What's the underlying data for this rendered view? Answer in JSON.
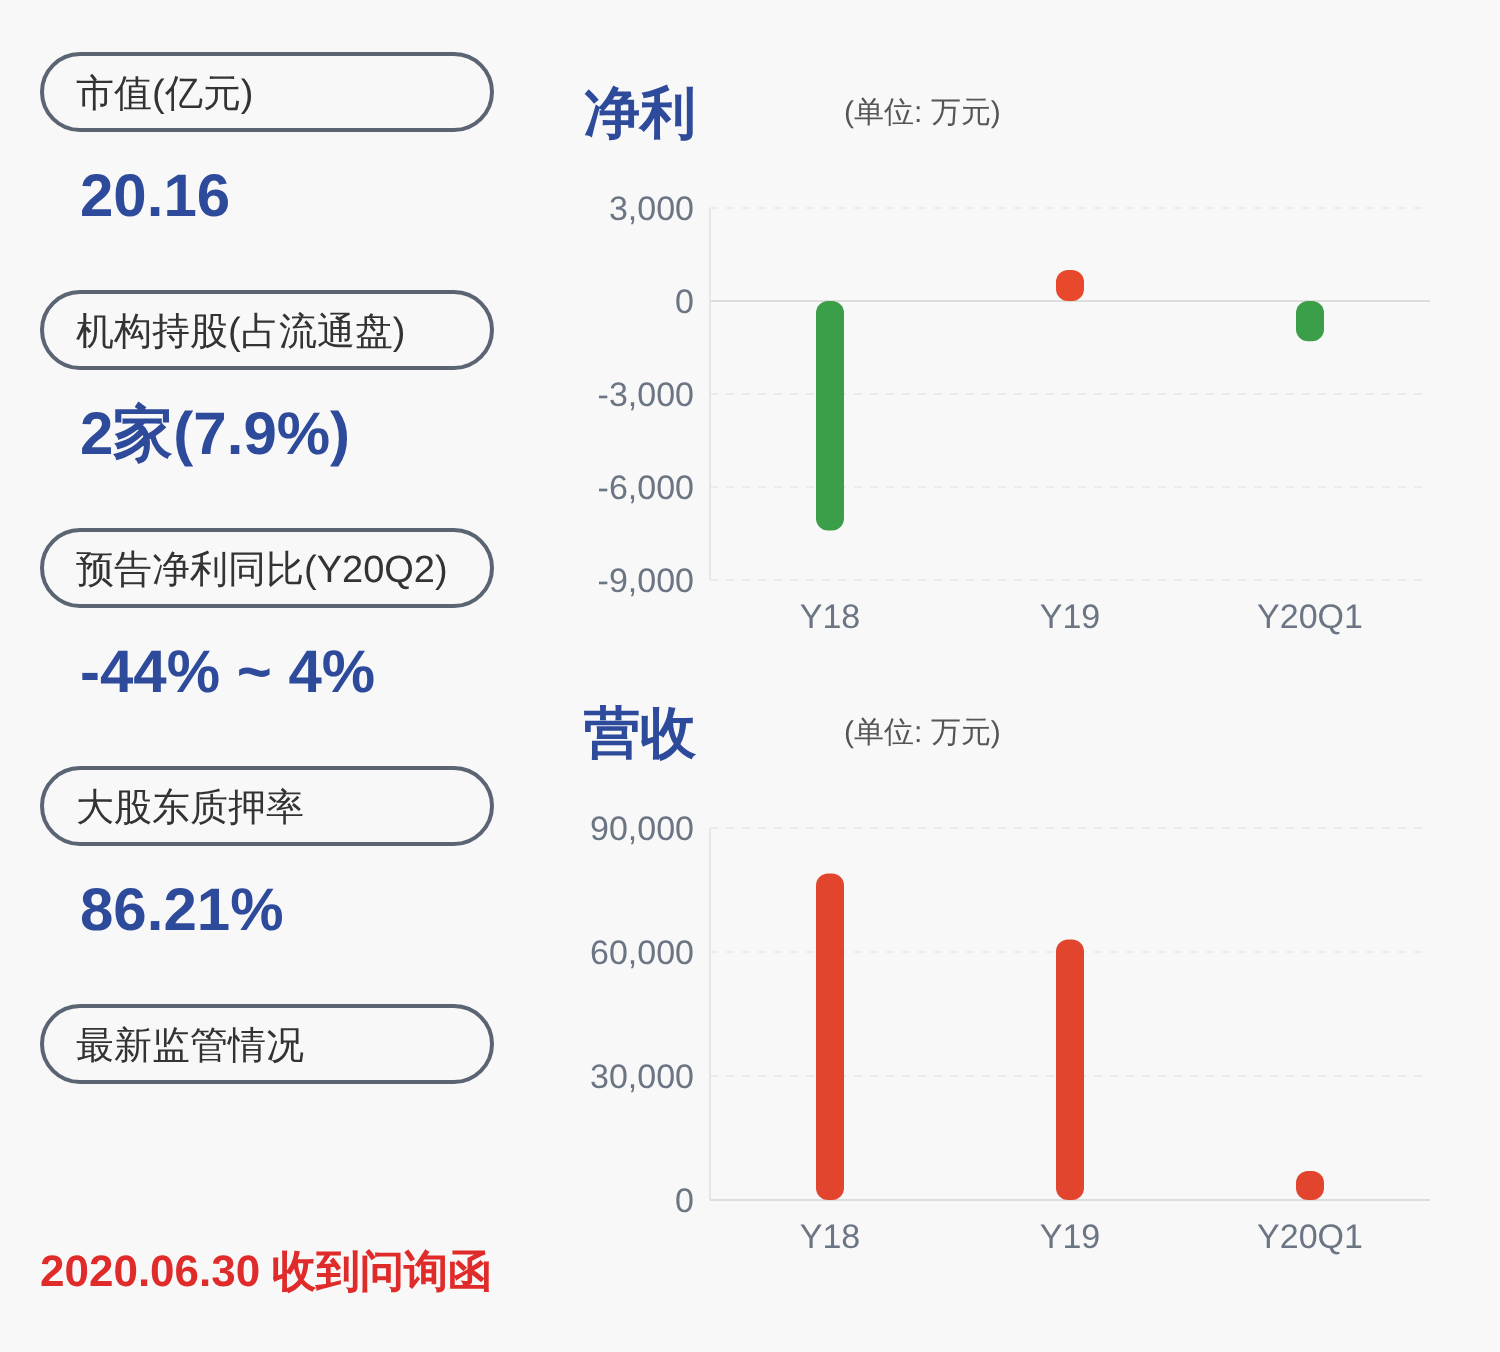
{
  "chart_data": [
    {
      "type": "other",
      "annotations": [
        "市值(亿元)",
        "20.16",
        "机构持股(占流通盘)",
        "2家(7.9%)",
        "预告净利同比(Y20Q2)",
        "-44% ~ 4%",
        "大股东质押率",
        "86.21%",
        "最新监管情况",
        "2020.06.30 收到问询函"
      ]
    },
    {
      "type": "bar",
      "title": "净利",
      "subtitle": "(单位: 万元)",
      "categories": [
        "Y18",
        "Y19",
        "Y20Q1"
      ],
      "values": [
        -7400,
        1000,
        -1300
      ],
      "colors": [
        "#3b9e48",
        "#e8482c",
        "#3b9e48"
      ],
      "ylim": [
        -9000,
        3000
      ],
      "yticks": [
        {
          "value": -9000,
          "label": "-9,000"
        },
        {
          "value": -6000,
          "label": "-6,000"
        },
        {
          "value": -3000,
          "label": "-3,000"
        },
        0,
        {
          "value": 3000,
          "label": "3,000"
        }
      ],
      "grid": "y"
    },
    {
      "type": "bar",
      "title": "营收",
      "subtitle": "(单位: 万元)",
      "categories": [
        "Y18",
        "Y19",
        "Y20Q1"
      ],
      "values": [
        79000,
        63000,
        7000
      ],
      "color": "#e2452d",
      "ylim": [
        0,
        90000
      ],
      "yticks": [
        0,
        {
          "value": 30000,
          "label": "30,000"
        },
        {
          "value": 60000,
          "label": "60,000"
        },
        {
          "value": 90000,
          "label": "90,000"
        }
      ],
      "grid": "y"
    }
  ]
}
